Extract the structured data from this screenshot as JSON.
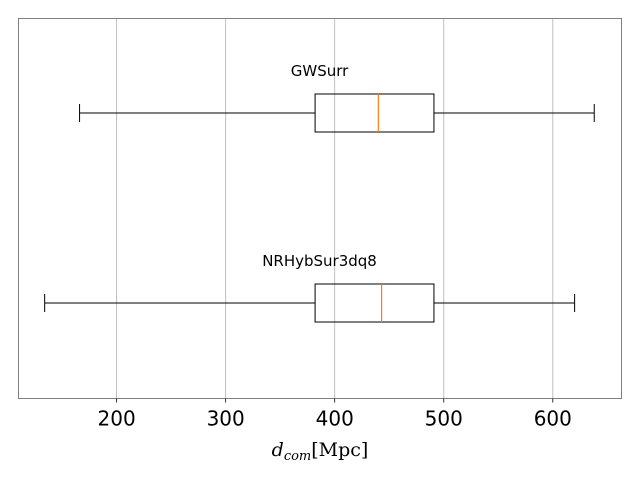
{
  "chart_data": {
    "type": "boxplot",
    "orientation": "horizontal",
    "title": "",
    "xlabel": {
      "main": "d",
      "sub": "com",
      "unit": "[Mpc]"
    },
    "ylabel": "",
    "xlim": [
      110,
      663
    ],
    "xticks": [
      200,
      300,
      400,
      500,
      600
    ],
    "grid": "x",
    "series": [
      {
        "name": "GWSurr",
        "whisker_low": 166,
        "q1": 382,
        "median": 440,
        "q3": 491,
        "whisker_high": 638
      },
      {
        "name": "NRHybSur3dq8",
        "whisker_low": 134,
        "q1": 382,
        "median": 443,
        "q3": 491,
        "whisker_high": 620
      }
    ],
    "colors": {
      "box": "#000000",
      "median": "#ff7f0e",
      "grid": "#b0b0b0",
      "frame": "#808080"
    }
  }
}
